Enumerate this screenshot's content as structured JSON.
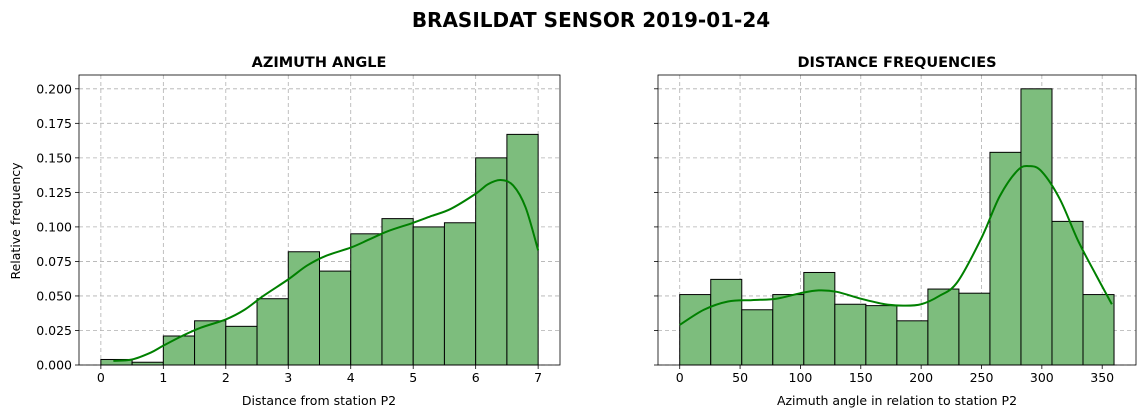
{
  "title": "BRASILDAT SENSOR 2019-01-24",
  "chart_data": [
    {
      "type": "bar",
      "title": "AZIMUTH ANGLE",
      "xlabel": "Distance from station P2",
      "ylabel": "Relative frequency",
      "xlim": [
        -0.35,
        7.35
      ],
      "ylim": [
        0,
        0.21
      ],
      "xticks": [
        0,
        1,
        2,
        3,
        4,
        5,
        6,
        7
      ],
      "xtick_labels": [
        "0",
        "1",
        "2",
        "3",
        "4",
        "5",
        "6",
        "7"
      ],
      "yticks": [
        0,
        0.025,
        0.05,
        0.075,
        0.1,
        0.125,
        0.15,
        0.175,
        0.2
      ],
      "ytick_labels": [
        "0.000",
        "0.025",
        "0.050",
        "0.075",
        "0.100",
        "0.125",
        "0.150",
        "0.175",
        "0.200"
      ],
      "bin_edges": [
        0,
        0.5,
        1.0,
        1.5,
        2.0,
        2.5,
        3.0,
        3.5,
        4.0,
        4.5,
        5.0,
        5.5,
        6.0,
        6.5,
        7.0
      ],
      "values": [
        0.004,
        0.002,
        0.021,
        0.032,
        0.028,
        0.048,
        0.082,
        0.068,
        0.095,
        0.106,
        0.1,
        0.103,
        0.15,
        0.167
      ],
      "kde": {
        "x": [
          0.2,
          0.5,
          0.8,
          1.0,
          1.3,
          1.6,
          2.0,
          2.3,
          2.6,
          3.0,
          3.3,
          3.6,
          4.0,
          4.3,
          4.6,
          5.0,
          5.3,
          5.6,
          6.0,
          6.2,
          6.4,
          6.6,
          6.8,
          7.0
        ],
        "y": [
          0.003,
          0.004,
          0.009,
          0.014,
          0.021,
          0.027,
          0.033,
          0.04,
          0.05,
          0.062,
          0.072,
          0.079,
          0.085,
          0.091,
          0.097,
          0.103,
          0.108,
          0.113,
          0.124,
          0.131,
          0.134,
          0.13,
          0.114,
          0.083
        ]
      },
      "color": "#7dbd7d",
      "line_color": "#008000",
      "grid": true
    },
    {
      "type": "bar",
      "title": "DISTANCE FREQUENCIES",
      "xlabel": "Azimuth angle in relation to station P2",
      "ylabel": "",
      "xlim": [
        -18,
        378
      ],
      "ylim": [
        0,
        0.21
      ],
      "xticks": [
        0,
        50,
        100,
        150,
        200,
        250,
        300,
        350
      ],
      "xtick_labels": [
        "0",
        "50",
        "100",
        "150",
        "200",
        "250",
        "300",
        "350"
      ],
      "bin_edges": [
        0,
        25.7,
        51.4,
        77.1,
        102.8,
        128.5,
        154.2,
        179.9,
        205.6,
        231.3,
        257.0,
        282.7,
        308.4,
        334.1,
        359.8
      ],
      "values": [
        0.051,
        0.062,
        0.04,
        0.051,
        0.067,
        0.044,
        0.043,
        0.032,
        0.055,
        0.052,
        0.154,
        0.2,
        0.104,
        0.051
      ],
      "kde": {
        "x": [
          0,
          20,
          40,
          60,
          80,
          100,
          115,
          130,
          150,
          170,
          185,
          200,
          215,
          230,
          250,
          265,
          280,
          290,
          300,
          315,
          330,
          345,
          358
        ],
        "y": [
          0.029,
          0.04,
          0.046,
          0.047,
          0.048,
          0.052,
          0.054,
          0.053,
          0.048,
          0.044,
          0.043,
          0.044,
          0.05,
          0.06,
          0.092,
          0.122,
          0.141,
          0.144,
          0.14,
          0.12,
          0.09,
          0.065,
          0.044
        ]
      },
      "color": "#7dbd7d",
      "line_color": "#008000",
      "grid": true
    }
  ]
}
